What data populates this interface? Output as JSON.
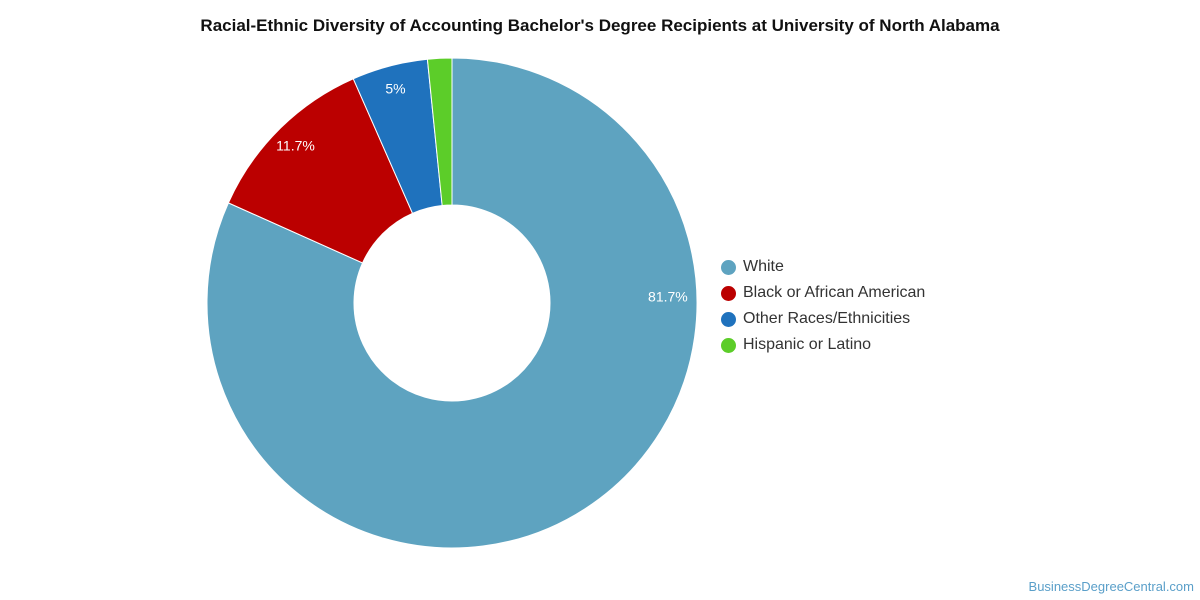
{
  "chart_data": {
    "type": "pie",
    "title": "Racial-Ethnic Diversity of Accounting Bachelor's Degree Recipients at University of North Alabama",
    "series": [
      {
        "name": "White",
        "value": 81.7,
        "label": "81.7%",
        "color": "#5ea3c0"
      },
      {
        "name": "Black or African American",
        "value": 11.7,
        "label": "11.7%",
        "color": "#bb0000"
      },
      {
        "name": "Other Races/Ethnicities",
        "value": 5,
        "label": "5%",
        "color": "#1f72bd"
      },
      {
        "name": "Hispanic or Latino",
        "value": 1.6,
        "label": "",
        "color": "#5ccd29"
      }
    ],
    "legend_position": "right"
  },
  "watermark": "BusinessDegreeCentral.com"
}
